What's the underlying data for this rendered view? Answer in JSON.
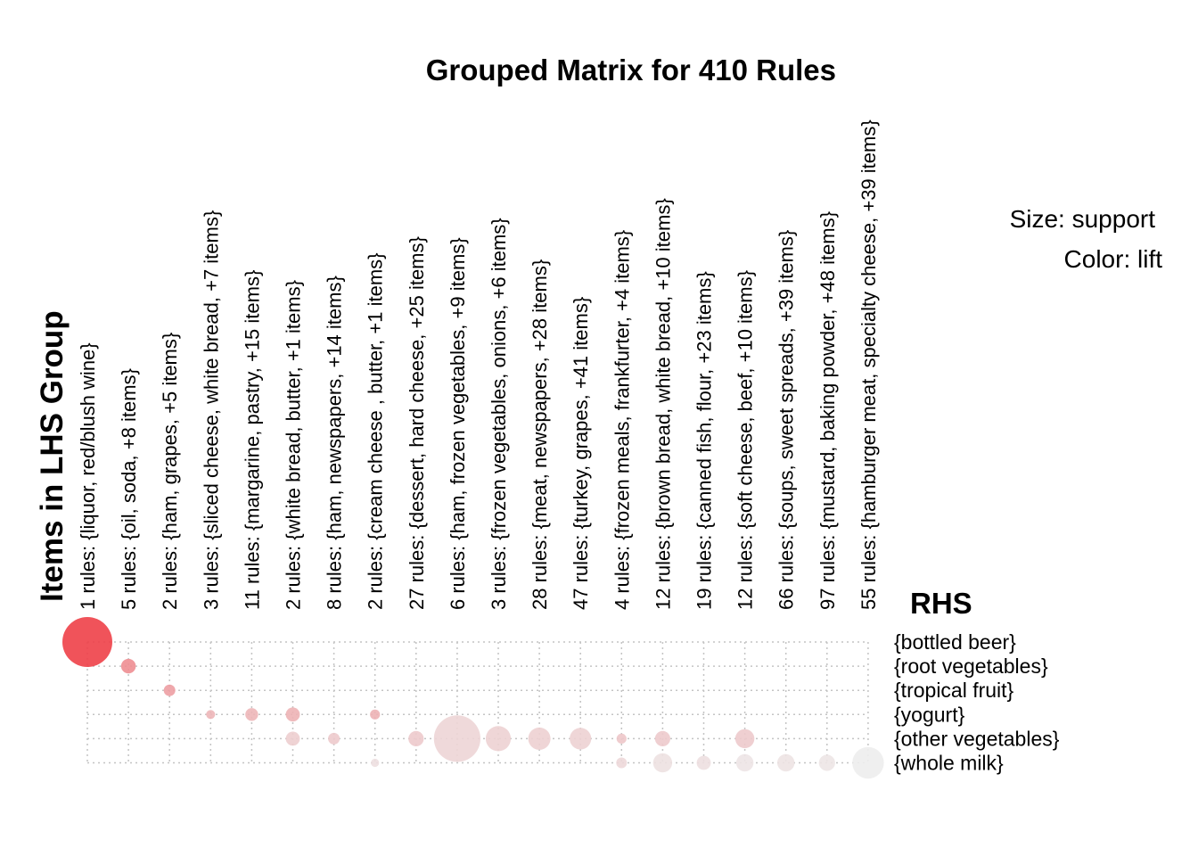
{
  "chart_data": {
    "type": "grouped-matrix",
    "title": "Grouped Matrix for 410 Rules",
    "xlabel": "Items in LHS Group",
    "ylabel": "RHS",
    "legend": {
      "size": "Size: support",
      "color": "Color: lift",
      "placement": "right"
    },
    "grid": true,
    "colors": {
      "high_lift": "#ee4048",
      "low_lift": "#ededed"
    },
    "lhs_groups": [
      "1 rules: {liquor, red/blush wine}",
      "5 rules: {oil, soda, +8 items}",
      "2 rules: {ham, grapes, +5 items}",
      "3 rules: {sliced cheese, white bread, +7 items}",
      "11 rules: {margarine, pastry, +15 items}",
      "2 rules: {white bread, butter, +1 items}",
      "8 rules: {ham, newspapers, +14 items}",
      "2 rules: {cream cheese , butter, +1 items}",
      "27 rules: {dessert, hard cheese, +25 items}",
      "6 rules: {ham, frozen vegetables, +9 items}",
      "3 rules: {frozen vegetables, onions, +6 items}",
      "28 rules: {meat, newspapers, +28 items}",
      "47 rules: {turkey, grapes, +41 items}",
      "4 rules: {frozen meals, frankfurter, +4 items}",
      "12 rules: {brown bread, white bread, +10 items}",
      "19 rules: {canned fish, flour, +23 items}",
      "12 rules: {soft cheese, beef, +10 items}",
      "66 rules: {soups, sweet spreads, +39 items}",
      "97 rules: {mustard, baking powder, +48 items}",
      "55 rules: {hamburger meat, specialty cheese, +39 items}"
    ],
    "rhs_items": [
      "{bottled beer}",
      "{root vegetables}",
      "{tropical fruit}",
      "{yogurt}",
      "{other vegetables}",
      "{whole milk}"
    ],
    "points": [
      {
        "lhs": 0,
        "rhs": 0,
        "support": 0.75,
        "lift": 1.0
      },
      {
        "lhs": 1,
        "rhs": 1,
        "support": 0.065,
        "lift": 0.55
      },
      {
        "lhs": 2,
        "rhs": 2,
        "support": 0.04,
        "lift": 0.45
      },
      {
        "lhs": 3,
        "rhs": 3,
        "support": 0.025,
        "lift": 0.32
      },
      {
        "lhs": 4,
        "rhs": 3,
        "support": 0.05,
        "lift": 0.32
      },
      {
        "lhs": 5,
        "rhs": 3,
        "support": 0.06,
        "lift": 0.34
      },
      {
        "lhs": 7,
        "rhs": 3,
        "support": 0.03,
        "lift": 0.34
      },
      {
        "lhs": 5,
        "rhs": 4,
        "support": 0.06,
        "lift": 0.18
      },
      {
        "lhs": 6,
        "rhs": 4,
        "support": 0.04,
        "lift": 0.2
      },
      {
        "lhs": 8,
        "rhs": 4,
        "support": 0.07,
        "lift": 0.2
      },
      {
        "lhs": 9,
        "rhs": 4,
        "support": 0.65,
        "lift": 0.14
      },
      {
        "lhs": 10,
        "rhs": 4,
        "support": 0.19,
        "lift": 0.16
      },
      {
        "lhs": 11,
        "rhs": 4,
        "support": 0.15,
        "lift": 0.17
      },
      {
        "lhs": 12,
        "rhs": 4,
        "support": 0.14,
        "lift": 0.16
      },
      {
        "lhs": 13,
        "rhs": 4,
        "support": 0.03,
        "lift": 0.22
      },
      {
        "lhs": 14,
        "rhs": 4,
        "support": 0.07,
        "lift": 0.2
      },
      {
        "lhs": 16,
        "rhs": 4,
        "support": 0.11,
        "lift": 0.2
      },
      {
        "lhs": 7,
        "rhs": 5,
        "support": 0.02,
        "lift": 0.08
      },
      {
        "lhs": 13,
        "rhs": 5,
        "support": 0.035,
        "lift": 0.12
      },
      {
        "lhs": 14,
        "rhs": 5,
        "support": 0.11,
        "lift": 0.07
      },
      {
        "lhs": 15,
        "rhs": 5,
        "support": 0.06,
        "lift": 0.08
      },
      {
        "lhs": 16,
        "rhs": 5,
        "support": 0.09,
        "lift": 0.05
      },
      {
        "lhs": 17,
        "rhs": 5,
        "support": 0.09,
        "lift": 0.06
      },
      {
        "lhs": 18,
        "rhs": 5,
        "support": 0.08,
        "lift": 0.04
      },
      {
        "lhs": 19,
        "rhs": 5,
        "support": 0.3,
        "lift": 0.0
      }
    ]
  }
}
